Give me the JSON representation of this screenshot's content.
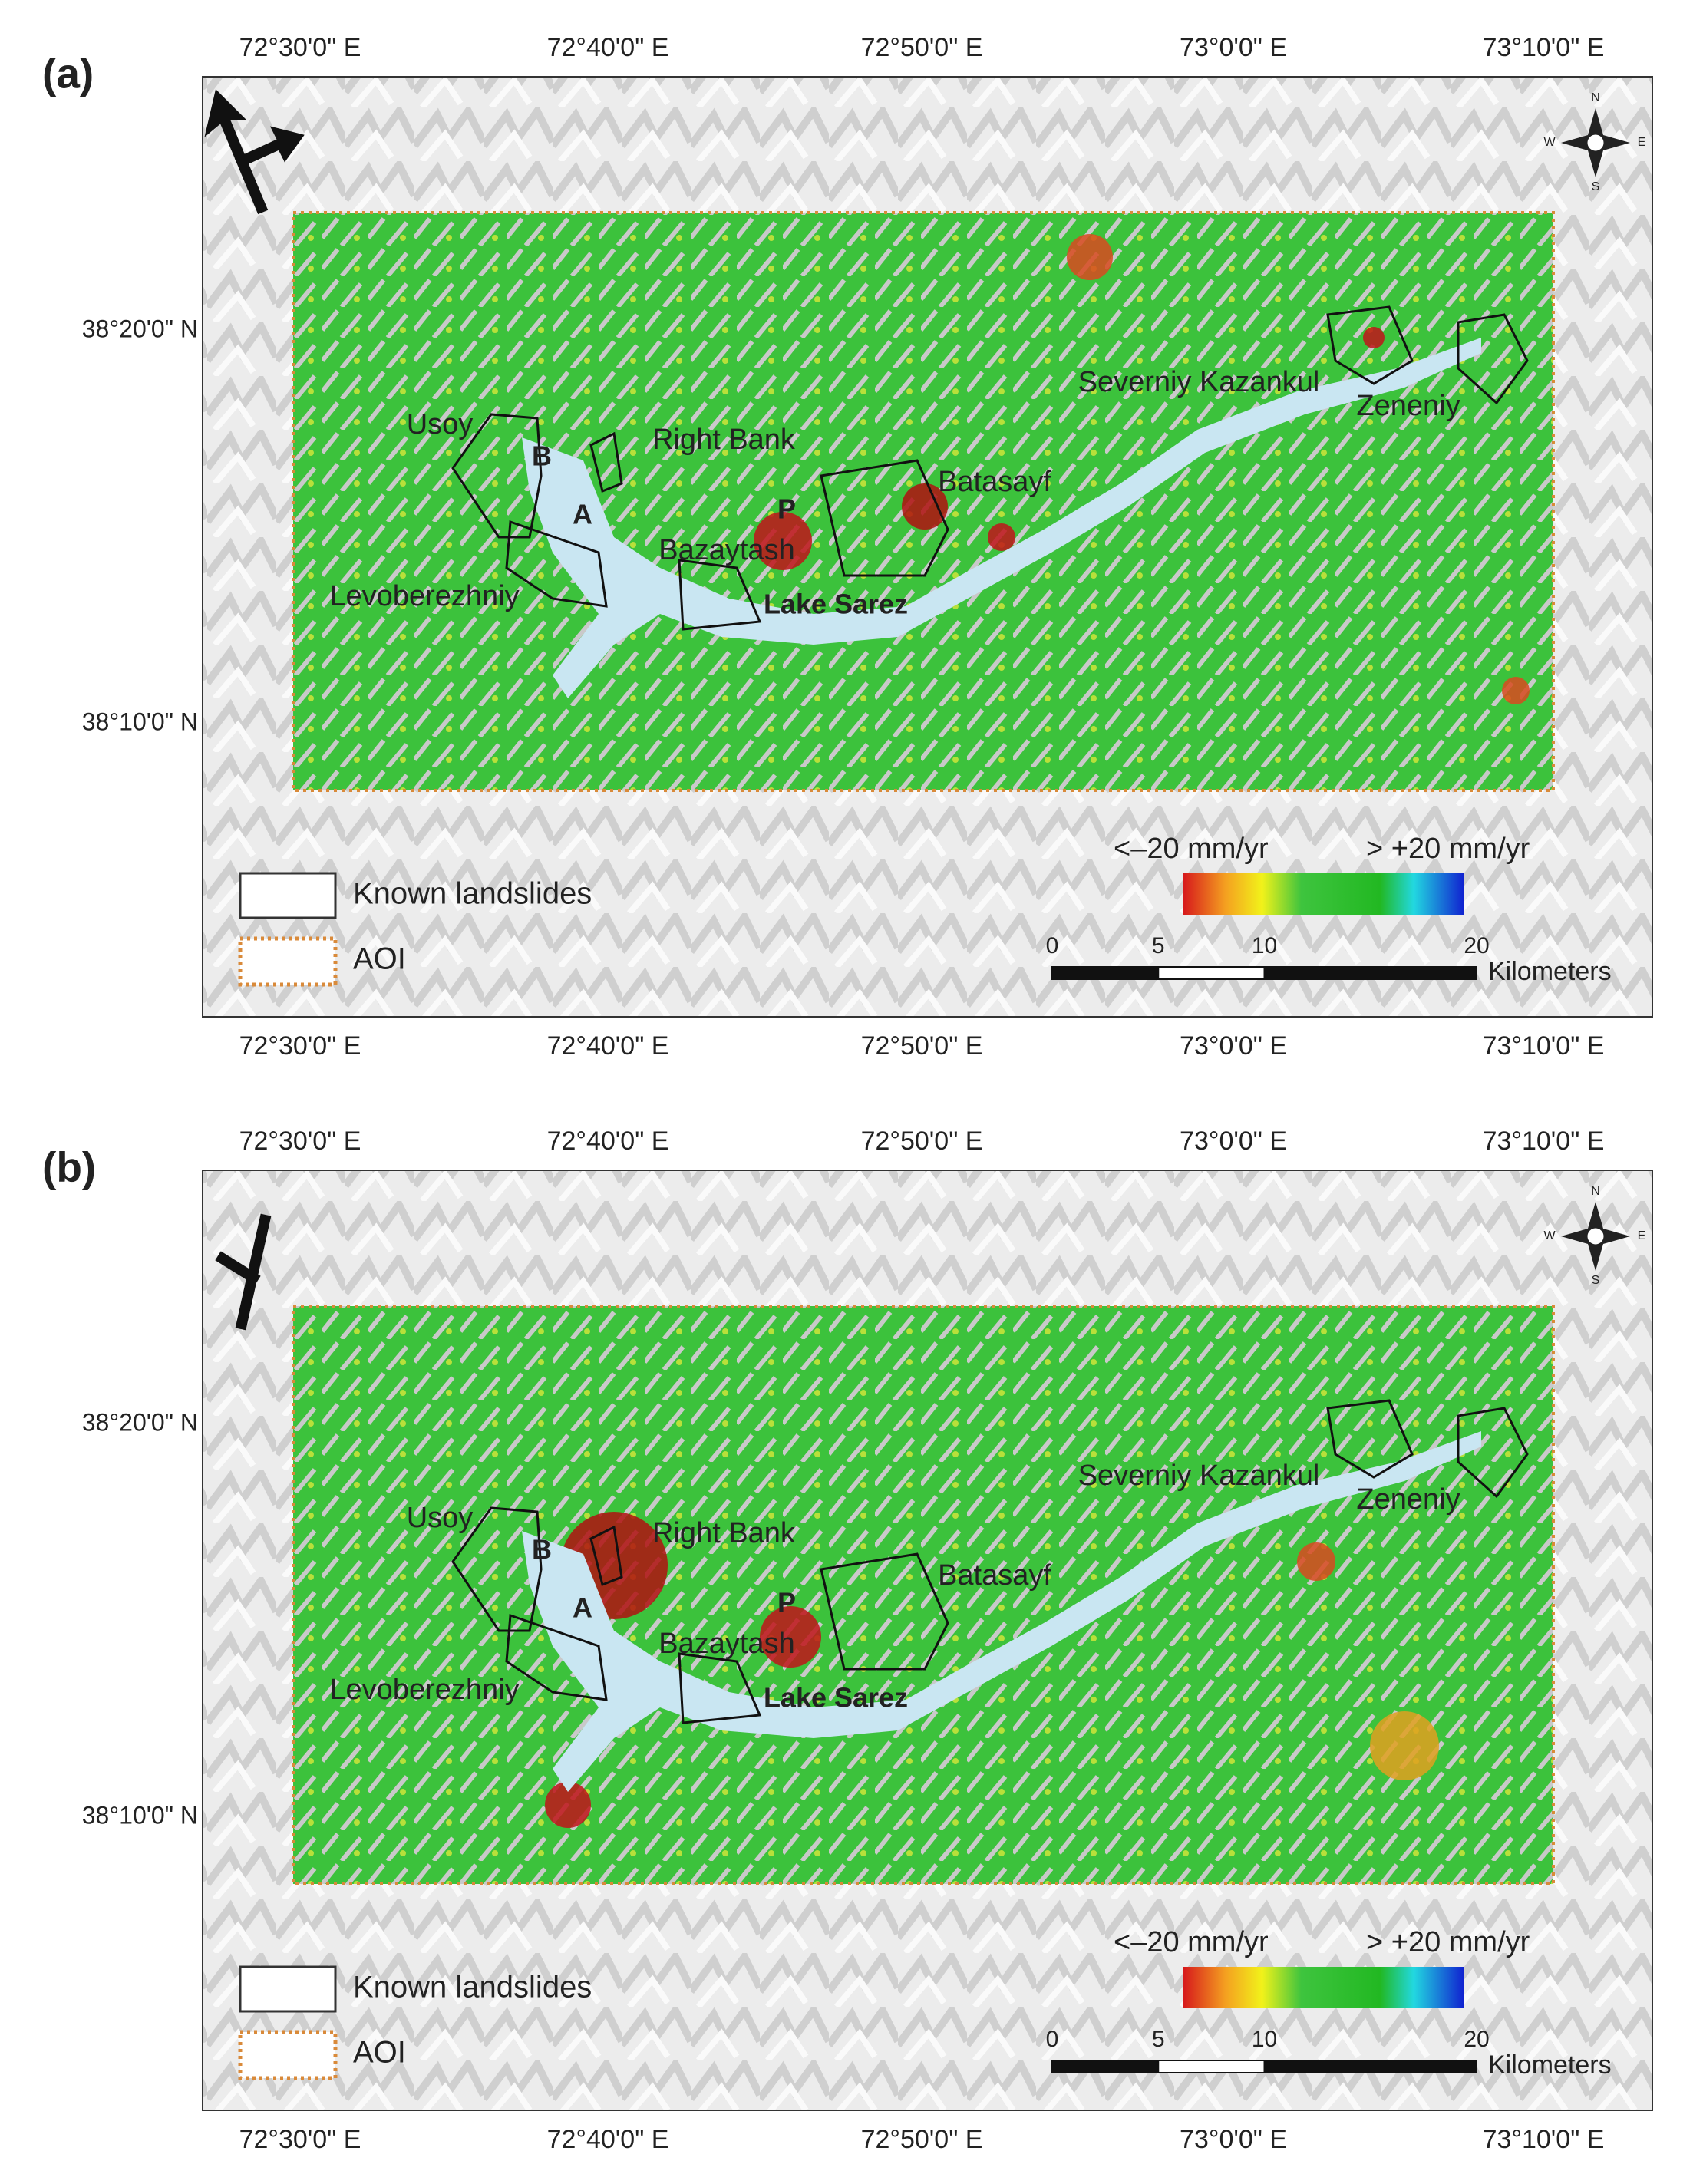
{
  "panels": [
    {
      "label": "(a)",
      "lon_labels": [
        "72°30'0\" E",
        "72°40'0\" E",
        "72°50'0\" E",
        "73°0'0\" E",
        "73°10'0\" E"
      ],
      "lat_labels": [
        "38°20'0\" N",
        "38°10'0\" N"
      ],
      "places": [
        "Usoy",
        "Right Bank",
        "Batasayf",
        "Severniy Kazankul",
        "Zeneniy",
        "Levoberezhniy",
        "Bazaytash",
        "Lake Sarez",
        "P",
        "A",
        "B"
      ],
      "legend": [
        "Known landslides",
        "AOI"
      ],
      "colorbar": [
        "<–20 mm/yr",
        "> +20 mm/yr"
      ],
      "scale_ticks": [
        0,
        5,
        10,
        20
      ],
      "scale_unit": "Kilometers",
      "compass": [
        "N",
        "S",
        "W",
        "E"
      ]
    },
    {
      "label": "(b)",
      "lon_labels": [
        "72°30'0\" E",
        "72°40'0\" E",
        "72°50'0\" E",
        "73°0'0\" E",
        "73°10'0\" E"
      ],
      "lat_labels": [
        "38°20'0\" N",
        "38°10'0\" N"
      ],
      "places": [
        "Usoy",
        "Right Bank",
        "Batasayf",
        "Severniy Kazankul",
        "Zeneniy",
        "Levoberezhniy",
        "Bazaytash",
        "Lake Sarez",
        "P",
        "A",
        "B"
      ],
      "legend": [
        "Known landslides",
        "AOI"
      ],
      "colorbar": [
        "<–20 mm/yr",
        "> +20 mm/yr"
      ],
      "scale_ticks": [
        0,
        5,
        10,
        20
      ],
      "scale_unit": "Kilometers",
      "compass": [
        "N",
        "S",
        "W",
        "E"
      ]
    }
  ]
}
